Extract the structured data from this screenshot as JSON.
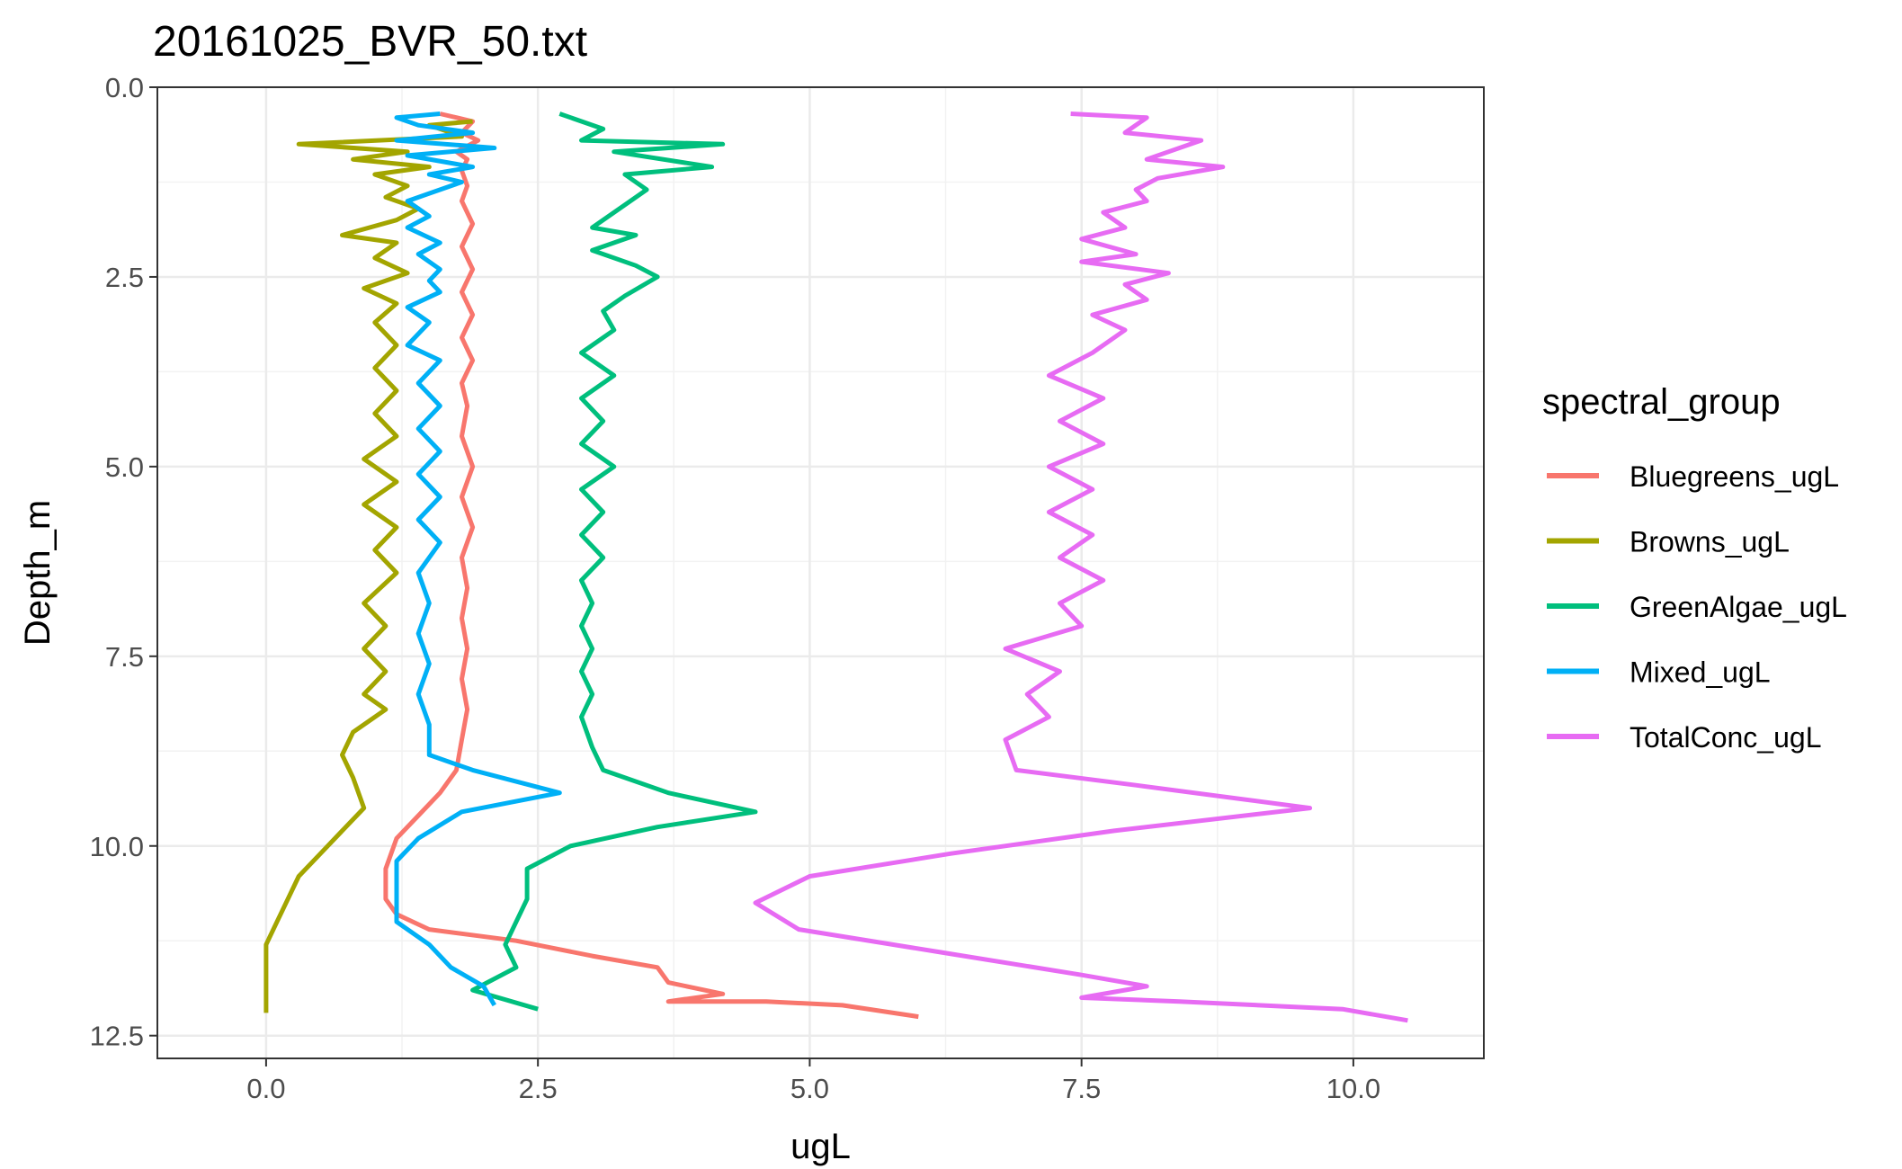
{
  "chart_data": {
    "type": "line",
    "title": "20161025_BVR_50.txt",
    "xlabel": "ugL",
    "ylabel": "Depth_m",
    "xlim": [
      -1.0,
      11.2
    ],
    "ylim": [
      0.0,
      12.8
    ],
    "y_reversed": true,
    "x_ticks": [
      0.0,
      2.5,
      5.0,
      7.5,
      10.0
    ],
    "x_tick_labels": [
      "0.0",
      "2.5",
      "5.0",
      "7.5",
      "10.0"
    ],
    "y_ticks": [
      0.0,
      2.5,
      5.0,
      7.5,
      10.0,
      12.5
    ],
    "y_tick_labels": [
      "0.0",
      "2.5",
      "5.0",
      "7.5",
      "10.0",
      "12.5"
    ],
    "grid": true,
    "legend": {
      "title": "spectral_group",
      "position": "right"
    },
    "series": [
      {
        "name": "Bluegreens_ugL",
        "color": "#F8766D",
        "points": [
          [
            1.6,
            0.35
          ],
          [
            1.9,
            0.45
          ],
          [
            1.8,
            0.6
          ],
          [
            1.95,
            0.7
          ],
          [
            1.75,
            0.85
          ],
          [
            1.85,
            0.95
          ],
          [
            1.8,
            1.1
          ],
          [
            1.85,
            1.3
          ],
          [
            1.8,
            1.5
          ],
          [
            1.9,
            1.8
          ],
          [
            1.8,
            2.1
          ],
          [
            1.9,
            2.4
          ],
          [
            1.8,
            2.7
          ],
          [
            1.9,
            3.0
          ],
          [
            1.8,
            3.3
          ],
          [
            1.9,
            3.6
          ],
          [
            1.8,
            3.9
          ],
          [
            1.85,
            4.2
          ],
          [
            1.8,
            4.6
          ],
          [
            1.9,
            5.0
          ],
          [
            1.8,
            5.4
          ],
          [
            1.9,
            5.8
          ],
          [
            1.8,
            6.2
          ],
          [
            1.85,
            6.6
          ],
          [
            1.8,
            7.0
          ],
          [
            1.85,
            7.4
          ],
          [
            1.8,
            7.8
          ],
          [
            1.85,
            8.2
          ],
          [
            1.8,
            8.6
          ],
          [
            1.75,
            9.0
          ],
          [
            1.6,
            9.3
          ],
          [
            1.4,
            9.6
          ],
          [
            1.2,
            9.9
          ],
          [
            1.1,
            10.3
          ],
          [
            1.1,
            10.7
          ],
          [
            1.2,
            10.9
          ],
          [
            1.5,
            11.1
          ],
          [
            2.3,
            11.25
          ],
          [
            3.0,
            11.45
          ],
          [
            3.6,
            11.6
          ],
          [
            3.7,
            11.8
          ],
          [
            4.2,
            11.95
          ],
          [
            3.7,
            12.05
          ],
          [
            4.6,
            12.05
          ],
          [
            5.3,
            12.1
          ],
          [
            6.0,
            12.25
          ]
        ]
      },
      {
        "name": "Browns_ugL",
        "color": "#A3A500",
        "points": [
          [
            1.9,
            0.45
          ],
          [
            1.5,
            0.5
          ],
          [
            1.8,
            0.65
          ],
          [
            0.3,
            0.75
          ],
          [
            1.3,
            0.85
          ],
          [
            0.8,
            0.95
          ],
          [
            1.5,
            1.05
          ],
          [
            1.0,
            1.15
          ],
          [
            1.3,
            1.3
          ],
          [
            1.1,
            1.45
          ],
          [
            1.4,
            1.6
          ],
          [
            1.2,
            1.75
          ],
          [
            0.7,
            1.95
          ],
          [
            1.2,
            2.05
          ],
          [
            1.0,
            2.25
          ],
          [
            1.3,
            2.45
          ],
          [
            0.9,
            2.65
          ],
          [
            1.2,
            2.85
          ],
          [
            1.0,
            3.1
          ],
          [
            1.2,
            3.4
          ],
          [
            1.0,
            3.7
          ],
          [
            1.2,
            4.0
          ],
          [
            1.0,
            4.3
          ],
          [
            1.2,
            4.6
          ],
          [
            0.9,
            4.9
          ],
          [
            1.2,
            5.2
          ],
          [
            0.9,
            5.5
          ],
          [
            1.2,
            5.8
          ],
          [
            1.0,
            6.1
          ],
          [
            1.2,
            6.4
          ],
          [
            0.9,
            6.8
          ],
          [
            1.1,
            7.1
          ],
          [
            0.9,
            7.4
          ],
          [
            1.1,
            7.7
          ],
          [
            0.9,
            8.0
          ],
          [
            1.1,
            8.2
          ],
          [
            0.8,
            8.5
          ],
          [
            0.7,
            8.8
          ],
          [
            0.8,
            9.1
          ],
          [
            0.9,
            9.5
          ],
          [
            0.7,
            9.8
          ],
          [
            0.5,
            10.1
          ],
          [
            0.3,
            10.4
          ],
          [
            0.2,
            10.7
          ],
          [
            0.1,
            11.0
          ],
          [
            0.0,
            11.3
          ],
          [
            0.0,
            12.2
          ]
        ]
      },
      {
        "name": "GreenAlgae_ugL",
        "color": "#00BF7D",
        "points": [
          [
            2.7,
            0.35
          ],
          [
            3.1,
            0.55
          ],
          [
            2.9,
            0.7
          ],
          [
            4.2,
            0.75
          ],
          [
            3.2,
            0.85
          ],
          [
            4.1,
            1.05
          ],
          [
            3.3,
            1.15
          ],
          [
            3.5,
            1.35
          ],
          [
            3.3,
            1.55
          ],
          [
            3.0,
            1.85
          ],
          [
            3.4,
            1.95
          ],
          [
            3.0,
            2.15
          ],
          [
            3.4,
            2.35
          ],
          [
            3.6,
            2.5
          ],
          [
            3.3,
            2.75
          ],
          [
            3.1,
            2.95
          ],
          [
            3.2,
            3.2
          ],
          [
            2.9,
            3.5
          ],
          [
            3.2,
            3.8
          ],
          [
            2.9,
            4.1
          ],
          [
            3.1,
            4.4
          ],
          [
            2.9,
            4.7
          ],
          [
            3.2,
            5.0
          ],
          [
            2.9,
            5.3
          ],
          [
            3.1,
            5.6
          ],
          [
            2.9,
            5.9
          ],
          [
            3.1,
            6.2
          ],
          [
            2.9,
            6.5
          ],
          [
            3.0,
            6.8
          ],
          [
            2.9,
            7.1
          ],
          [
            3.0,
            7.4
          ],
          [
            2.9,
            7.7
          ],
          [
            3.0,
            8.0
          ],
          [
            2.9,
            8.3
          ],
          [
            3.0,
            8.7
          ],
          [
            3.1,
            9.0
          ],
          [
            3.7,
            9.3
          ],
          [
            4.5,
            9.55
          ],
          [
            3.6,
            9.75
          ],
          [
            2.8,
            10.0
          ],
          [
            2.4,
            10.3
          ],
          [
            2.4,
            10.7
          ],
          [
            2.3,
            11.0
          ],
          [
            2.2,
            11.3
          ],
          [
            2.3,
            11.6
          ],
          [
            1.9,
            11.9
          ],
          [
            2.5,
            12.15
          ]
        ]
      },
      {
        "name": "Mixed_ugL",
        "color": "#00B0F6",
        "points": [
          [
            1.6,
            0.35
          ],
          [
            1.2,
            0.4
          ],
          [
            1.4,
            0.5
          ],
          [
            1.9,
            0.6
          ],
          [
            1.2,
            0.7
          ],
          [
            2.1,
            0.8
          ],
          [
            1.3,
            0.9
          ],
          [
            1.9,
            1.05
          ],
          [
            1.5,
            1.15
          ],
          [
            1.8,
            1.25
          ],
          [
            1.5,
            1.4
          ],
          [
            1.3,
            1.5
          ],
          [
            1.5,
            1.7
          ],
          [
            1.3,
            1.85
          ],
          [
            1.6,
            2.05
          ],
          [
            1.4,
            2.2
          ],
          [
            1.6,
            2.4
          ],
          [
            1.5,
            2.55
          ],
          [
            1.6,
            2.7
          ],
          [
            1.3,
            2.9
          ],
          [
            1.5,
            3.1
          ],
          [
            1.3,
            3.4
          ],
          [
            1.6,
            3.6
          ],
          [
            1.4,
            3.9
          ],
          [
            1.6,
            4.2
          ],
          [
            1.4,
            4.5
          ],
          [
            1.6,
            4.8
          ],
          [
            1.4,
            5.1
          ],
          [
            1.6,
            5.4
          ],
          [
            1.4,
            5.7
          ],
          [
            1.6,
            6.0
          ],
          [
            1.4,
            6.4
          ],
          [
            1.5,
            6.8
          ],
          [
            1.4,
            7.2
          ],
          [
            1.5,
            7.6
          ],
          [
            1.4,
            8.0
          ],
          [
            1.5,
            8.4
          ],
          [
            1.5,
            8.8
          ],
          [
            1.9,
            9.0
          ],
          [
            2.7,
            9.3
          ],
          [
            1.8,
            9.55
          ],
          [
            1.4,
            9.9
          ],
          [
            1.2,
            10.2
          ],
          [
            1.2,
            10.6
          ],
          [
            1.2,
            11.0
          ],
          [
            1.5,
            11.3
          ],
          [
            1.7,
            11.6
          ],
          [
            2.0,
            11.85
          ],
          [
            2.1,
            12.1
          ]
        ]
      },
      {
        "name": "TotalConc_ugL",
        "color": "#E76BF3",
        "points": [
          [
            7.4,
            0.35
          ],
          [
            8.1,
            0.4
          ],
          [
            7.9,
            0.6
          ],
          [
            8.6,
            0.7
          ],
          [
            8.1,
            0.95
          ],
          [
            8.8,
            1.05
          ],
          [
            8.2,
            1.2
          ],
          [
            8.0,
            1.35
          ],
          [
            8.1,
            1.5
          ],
          [
            7.7,
            1.65
          ],
          [
            7.9,
            1.85
          ],
          [
            7.5,
            2.0
          ],
          [
            8.0,
            2.2
          ],
          [
            7.5,
            2.3
          ],
          [
            8.3,
            2.45
          ],
          [
            7.9,
            2.6
          ],
          [
            8.1,
            2.8
          ],
          [
            7.6,
            3.0
          ],
          [
            7.9,
            3.2
          ],
          [
            7.6,
            3.5
          ],
          [
            7.2,
            3.8
          ],
          [
            7.7,
            4.1
          ],
          [
            7.3,
            4.4
          ],
          [
            7.7,
            4.7
          ],
          [
            7.2,
            5.0
          ],
          [
            7.6,
            5.3
          ],
          [
            7.2,
            5.6
          ],
          [
            7.6,
            5.9
          ],
          [
            7.3,
            6.2
          ],
          [
            7.7,
            6.5
          ],
          [
            7.3,
            6.8
          ],
          [
            7.5,
            7.1
          ],
          [
            6.8,
            7.4
          ],
          [
            7.3,
            7.7
          ],
          [
            7.0,
            8.0
          ],
          [
            7.2,
            8.3
          ],
          [
            6.8,
            8.6
          ],
          [
            6.9,
            9.0
          ],
          [
            8.0,
            9.2
          ],
          [
            9.6,
            9.5
          ],
          [
            7.8,
            9.8
          ],
          [
            6.3,
            10.1
          ],
          [
            5.0,
            10.4
          ],
          [
            4.5,
            10.75
          ],
          [
            4.9,
            11.1
          ],
          [
            6.2,
            11.4
          ],
          [
            7.5,
            11.7
          ],
          [
            8.1,
            11.85
          ],
          [
            7.5,
            12.0
          ],
          [
            8.4,
            12.05
          ],
          [
            9.9,
            12.15
          ],
          [
            10.5,
            12.3
          ]
        ]
      }
    ]
  }
}
